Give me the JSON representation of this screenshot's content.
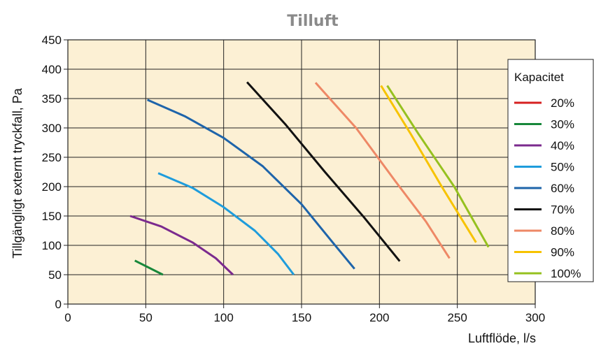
{
  "chart_data": {
    "type": "line",
    "title": "Tilluft",
    "xlabel": "Luftflöde, l/s",
    "ylabel": "Tillgängligt externt tryckfall, Pa",
    "xlim": [
      0,
      300
    ],
    "ylim": [
      0,
      450
    ],
    "xticks": [
      0,
      50,
      100,
      150,
      200,
      250,
      300
    ],
    "yticks": [
      0,
      50,
      100,
      150,
      200,
      250,
      300,
      350,
      400,
      450
    ],
    "grid": true,
    "background": "#fcf0d4",
    "legend": {
      "title": "Kapacitet",
      "placement": "right"
    },
    "series": [
      {
        "name": "20%",
        "color": "#d62020",
        "points": []
      },
      {
        "name": "30%",
        "color": "#17873a",
        "points": [
          [
            43,
            74
          ],
          [
            61,
            50
          ]
        ]
      },
      {
        "name": "40%",
        "color": "#7b2a8e",
        "points": [
          [
            40,
            150
          ],
          [
            60,
            132
          ],
          [
            80,
            105
          ],
          [
            95,
            78
          ],
          [
            106,
            50
          ]
        ]
      },
      {
        "name": "50%",
        "color": "#1e9cdc",
        "points": [
          [
            58,
            223
          ],
          [
            80,
            198
          ],
          [
            100,
            165
          ],
          [
            120,
            125
          ],
          [
            135,
            85
          ],
          [
            145,
            50
          ]
        ]
      },
      {
        "name": "60%",
        "color": "#1e64aa",
        "points": [
          [
            51,
            348
          ],
          [
            75,
            320
          ],
          [
            100,
            283
          ],
          [
            125,
            235
          ],
          [
            150,
            170
          ],
          [
            170,
            105
          ],
          [
            184,
            60
          ]
        ]
      },
      {
        "name": "70%",
        "color": "#111111",
        "points": [
          [
            115,
            378
          ],
          [
            140,
            305
          ],
          [
            165,
            225
          ],
          [
            190,
            148
          ],
          [
            213,
            73
          ]
        ]
      },
      {
        "name": "80%",
        "color": "#ee8866",
        "points": [
          [
            159,
            377
          ],
          [
            185,
            300
          ],
          [
            210,
            210
          ],
          [
            230,
            140
          ],
          [
            245,
            78
          ]
        ]
      },
      {
        "name": "90%",
        "color": "#f7c300",
        "points": [
          [
            201,
            372
          ],
          [
            220,
            290
          ],
          [
            240,
            200
          ],
          [
            262,
            105
          ]
        ]
      },
      {
        "name": "100%",
        "color": "#96c11f",
        "points": [
          [
            205,
            372
          ],
          [
            225,
            290
          ],
          [
            248,
            200
          ],
          [
            270,
            97
          ]
        ]
      }
    ]
  }
}
